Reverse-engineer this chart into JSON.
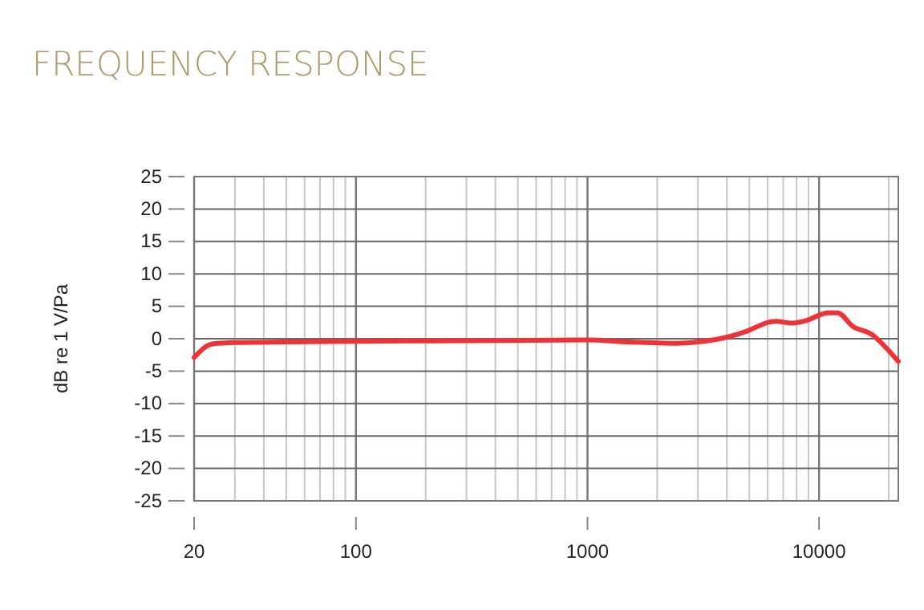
{
  "chart_data": {
    "type": "line",
    "title": "FREQUENCY RESPONSE",
    "ylabel": "dB re 1 V/Pa",
    "log": "x",
    "grid": true,
    "xlim": [
      20,
      22000
    ],
    "xticks": [
      20,
      100,
      1000,
      10000
    ],
    "ylim": [
      -25,
      25
    ],
    "yticks": [
      -25,
      -20,
      -15,
      -10,
      -5,
      0,
      5,
      10,
      15,
      20,
      25
    ],
    "series": [
      {
        "color": "#ee3338",
        "x": [
          20,
          24,
          30,
          50,
          100,
          300,
          1000,
          1500,
          2430,
          3000,
          4170,
          4900,
          6000,
          6500,
          7600,
          8600,
          11000,
          12000,
          14000,
          17000,
          19000,
          22000
        ],
        "values": [
          -2.9,
          -0.8,
          -0.6,
          -0.5,
          -0.4,
          -0.3,
          -0.2,
          -0.5,
          -0.7,
          -0.5,
          0.4,
          1.2,
          2.5,
          2.7,
          2.4,
          2.7,
          4.0,
          4.0,
          1.9,
          0.6,
          -1.0,
          -3.5
        ]
      }
    ]
  }
}
